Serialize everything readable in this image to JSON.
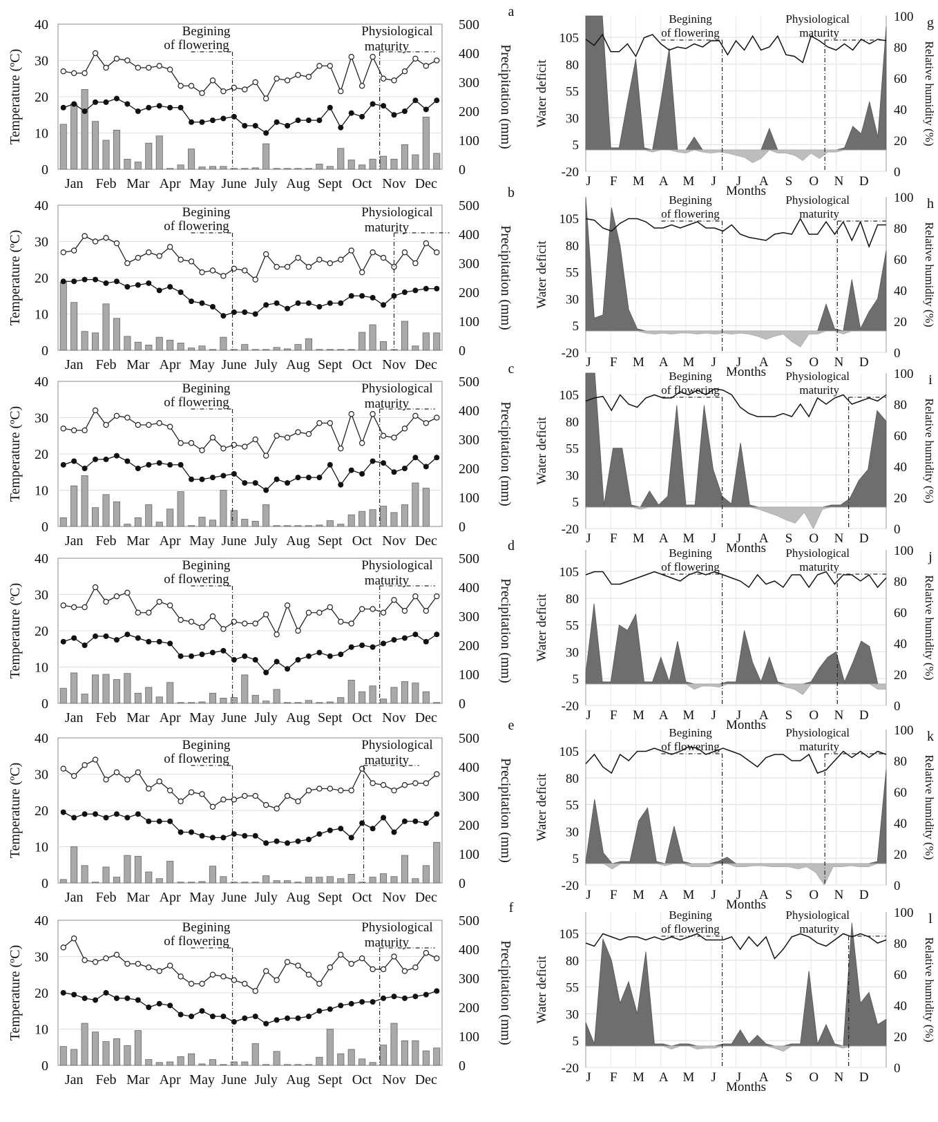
{
  "figure": {
    "left_axis_label": "Temperature (ºC)",
    "right_axis_label": "Precipitation (mm)",
    "wd_axis_label": "Water deficit",
    "rh_axis_label": "Relative humidity (%)",
    "wd_x_title": "Months",
    "flowering_label_1": "Begining",
    "flowering_label_2": "of flowering",
    "maturity_label_1": "Physiological",
    "maturity_label_2": "maturity",
    "month_labels": [
      "Jan",
      "Feb",
      "Mar",
      "Apr",
      "May",
      "June",
      "July",
      "Aug",
      "Sept",
      "Oct",
      "Nov",
      "Dec"
    ],
    "wd_month_labels": [
      "J",
      "F",
      "M",
      "A",
      "M",
      "J",
      "J",
      "A",
      "S",
      "O",
      "N",
      "D"
    ],
    "temp_ticks": [
      "0",
      "10",
      "20",
      "30",
      "40"
    ],
    "precip_ticks": [
      "0",
      "100",
      "200",
      "300",
      "400",
      "500"
    ],
    "wd_ticks": [
      "-20",
      "5",
      "30",
      "55",
      "80",
      "105"
    ],
    "rh_ticks": [
      "0",
      "20",
      "40",
      "60",
      "80",
      "100"
    ]
  },
  "chart_data": [
    {
      "panel": "a",
      "type": "line",
      "tmax": [
        27,
        26.5,
        26.5,
        32,
        28,
        30.5,
        30,
        28,
        28,
        28.5,
        27.5,
        23,
        23,
        21,
        24.5,
        21.5,
        22.5,
        22,
        24,
        19.5,
        25,
        24.5,
        26,
        25.5,
        28.5,
        28.5,
        21.5,
        31,
        23,
        31,
        25,
        24.5,
        27,
        30.5,
        28.5,
        30
      ],
      "tmin": [
        17,
        18,
        16,
        18.5,
        18.5,
        19.5,
        18,
        16,
        17,
        17.5,
        17,
        17,
        13,
        13,
        13.5,
        14,
        14.5,
        12,
        12,
        10,
        13,
        12,
        13.5,
        13.5,
        13.5,
        17,
        11.5,
        15.5,
        14.5,
        18,
        17.5,
        15,
        16,
        19,
        16.5,
        19
      ],
      "precip": [
        155,
        225,
        275,
        165,
        100,
        135,
        35,
        25,
        90,
        115,
        3,
        15,
        70,
        8,
        10,
        10,
        3,
        3,
        5,
        88,
        3,
        3,
        3,
        3,
        18,
        10,
        72,
        32,
        15,
        35,
        45,
        35,
        85,
        50,
        180,
        55
      ],
      "flowering": 5.45,
      "maturity": 10.05
    },
    {
      "panel": "b",
      "type": "line",
      "tmax": [
        27,
        27.5,
        31.5,
        30,
        31,
        29.5,
        24,
        25.5,
        27,
        26,
        28.5,
        25,
        24.5,
        21.5,
        22,
        20.5,
        22.5,
        22,
        19.5,
        26.5,
        23,
        23,
        25.5,
        23,
        25,
        24,
        25,
        27.5,
        21.5,
        27,
        25.5,
        23,
        27,
        24,
        29.5,
        27
      ],
      "tmin": [
        19,
        19,
        19.5,
        19.5,
        18.5,
        19,
        17.5,
        18,
        18.5,
        16.5,
        17.5,
        16,
        13.5,
        13,
        12,
        9.5,
        10.5,
        10.5,
        10,
        12.5,
        13,
        11.5,
        13,
        13,
        12,
        13,
        13,
        15,
        15,
        14.5,
        12.5,
        15,
        16,
        16.5,
        17,
        17
      ],
      "precip": [
        235,
        165,
        65,
        60,
        160,
        110,
        48,
        28,
        18,
        45,
        35,
        25,
        8,
        15,
        3,
        45,
        3,
        20,
        3,
        3,
        10,
        5,
        20,
        40,
        3,
        3,
        3,
        3,
        62,
        88,
        30,
        3,
        100,
        15,
        60,
        60,
        120
      ],
      "flowering": 5.45,
      "maturity": 10.5
    },
    {
      "panel": "c",
      "type": "line",
      "tmax": [
        27,
        26.5,
        26.5,
        32,
        28,
        30.5,
        30,
        28,
        28,
        28.5,
        27.5,
        23,
        23,
        21,
        24.5,
        21.5,
        22.5,
        22,
        24,
        19.5,
        25,
        24.5,
        26,
        25.5,
        28.5,
        28.5,
        21.5,
        31,
        23,
        31,
        25,
        24.5,
        27,
        30.5,
        28.5,
        30
      ],
      "tmin": [
        17,
        18,
        16,
        18.5,
        18.5,
        19.5,
        18,
        16,
        17,
        17.5,
        17,
        17,
        13,
        13,
        13.5,
        14,
        14.5,
        12,
        12,
        10,
        13,
        12,
        13.5,
        13.5,
        13.5,
        17,
        11.5,
        15.5,
        14.5,
        18,
        17.5,
        15,
        16,
        19,
        16.5,
        19
      ],
      "precip": [
        30,
        140,
        175,
        65,
        110,
        85,
        8,
        30,
        75,
        15,
        60,
        120,
        3,
        32,
        22,
        125,
        55,
        25,
        18,
        75,
        3,
        3,
        3,
        3,
        5,
        20,
        8,
        40,
        52,
        58,
        70,
        48,
        75,
        150,
        132
      ],
      "flowering": 5.45,
      "maturity": 10.05
    },
    {
      "panel": "d",
      "type": "line",
      "tmax": [
        27,
        26.5,
        26.5,
        32,
        28,
        29.5,
        30.5,
        25,
        25,
        28,
        27,
        23,
        22.5,
        21,
        24,
        20.5,
        22.5,
        22,
        22,
        24.5,
        19,
        27,
        20,
        25,
        25,
        26.5,
        22.5,
        22,
        26,
        26,
        25,
        28.5,
        25.5,
        29.5,
        25.5,
        29.5
      ],
      "tmin": [
        17,
        18,
        16,
        18.5,
        18.5,
        17.5,
        19,
        18,
        17,
        17,
        16.5,
        13,
        13,
        13.5,
        14,
        14.5,
        12,
        13,
        12,
        8.5,
        11.5,
        9.5,
        12,
        13,
        14,
        13,
        13.5,
        15.5,
        16,
        15.5,
        16.5,
        17.5,
        18,
        19,
        17,
        19
      ],
      "precip": [
        52,
        105,
        32,
        98,
        100,
        82,
        103,
        35,
        55,
        22,
        72,
        3,
        3,
        5,
        35,
        18,
        20,
        98,
        28,
        8,
        48,
        3,
        3,
        10,
        3,
        5,
        20,
        80,
        40,
        60,
        15,
        55,
        75,
        70,
        40,
        3,
        35
      ],
      "flowering": 5.45,
      "maturity": 10.05
    },
    {
      "panel": "e",
      "type": "line",
      "tmax": [
        31.5,
        29.5,
        32.5,
        34,
        28.5,
        30.5,
        28.5,
        30.5,
        26,
        28,
        25.5,
        22.5,
        25,
        24.5,
        21,
        23,
        23,
        24,
        24,
        21.5,
        20.5,
        24,
        22.5,
        25.5,
        26,
        26,
        25.5,
        25.5,
        31.5,
        27.5,
        27,
        25.5,
        27,
        27.5,
        27.5,
        30
      ],
      "tmin": [
        19.5,
        18,
        19,
        19,
        18,
        19,
        18,
        19,
        17,
        17,
        17,
        14,
        14,
        13,
        12.5,
        12.5,
        13.5,
        13,
        13,
        11,
        11.5,
        11,
        11.5,
        12,
        13.5,
        14.5,
        15,
        12.5,
        16.5,
        15,
        18,
        14,
        17,
        17,
        16.5,
        19
      ],
      "precip": [
        12,
        125,
        60,
        3,
        55,
        20,
        95,
        92,
        38,
        15,
        75,
        3,
        3,
        5,
        58,
        22,
        3,
        3,
        3,
        25,
        8,
        8,
        3,
        20,
        20,
        22,
        15,
        30,
        3,
        20,
        32,
        22,
        95,
        15,
        60,
        140
      ],
      "flowering": 5.45,
      "maturity": 9.55
    },
    {
      "panel": "f",
      "type": "line",
      "tmax": [
        32.5,
        35,
        29,
        28.5,
        29.5,
        30.5,
        28,
        28,
        27,
        26,
        27.5,
        24.5,
        22.5,
        22.5,
        25,
        24.5,
        23.5,
        22.5,
        20.5,
        26,
        23.5,
        28.5,
        27.5,
        25,
        22.5,
        27,
        30.5,
        28,
        29.5,
        26.5,
        26.5,
        30,
        26,
        27,
        31,
        29.5
      ],
      "tmin": [
        20,
        19.5,
        18.5,
        18,
        20,
        18.5,
        18.5,
        18,
        16,
        17,
        16.5,
        14,
        13.5,
        15,
        13.5,
        13.5,
        12,
        13,
        13.5,
        11.5,
        12.5,
        13,
        13,
        13.5,
        15,
        15.5,
        16.5,
        17,
        17.5,
        17.5,
        18.5,
        19,
        18.5,
        19,
        19.5,
        20.5
      ],
      "precip": [
        65,
        55,
        145,
        115,
        82,
        92,
        68,
        120,
        20,
        10,
        12,
        30,
        40,
        5,
        20,
        3,
        12,
        12,
        75,
        3,
        48,
        3,
        3,
        3,
        28,
        125,
        40,
        55,
        22,
        10,
        70,
        145,
        85,
        85,
        50,
        60,
        65
      ],
      "flowering": 5.45,
      "maturity": 10.05
    },
    {
      "panel": "g",
      "type": "area",
      "wd": [
        125,
        125,
        125,
        2,
        2,
        45,
        85,
        2,
        -2,
        45,
        95,
        -2,
        -3,
        12,
        -2,
        -3,
        -2,
        -3,
        -5,
        -7,
        -12,
        -8,
        20,
        -3,
        -3,
        -5,
        -10,
        -3,
        -8,
        -2,
        -2,
        2,
        22,
        15,
        45,
        12,
        115
      ],
      "rh": [
        85,
        81,
        88,
        77,
        77,
        82,
        74,
        86,
        88,
        82,
        78,
        80,
        79,
        82,
        80,
        84,
        84,
        75,
        84,
        78,
        87,
        78,
        80,
        87,
        75,
        74,
        70,
        87,
        84,
        80,
        78,
        82,
        78,
        85,
        82,
        85,
        84
      ],
      "flowering": 5.45,
      "maturity": 9.55
    },
    {
      "panel": "h",
      "type": "area",
      "wd": [
        125,
        12,
        15,
        115,
        80,
        20,
        2,
        -2,
        -3,
        -2,
        -3,
        -2,
        -2,
        -3,
        -2,
        -3,
        -2,
        -3,
        -2,
        -3,
        -5,
        -8,
        -5,
        -3,
        -10,
        -15,
        -3,
        -3,
        25,
        2,
        -3,
        48,
        2,
        18,
        30,
        75
      ],
      "rh": [
        86,
        85,
        80,
        78,
        83,
        86,
        86,
        84,
        80,
        80,
        82,
        80,
        82,
        84,
        80,
        80,
        78,
        82,
        76,
        74,
        73,
        72,
        76,
        77,
        76,
        86,
        76,
        76,
        84,
        76,
        84,
        72,
        84,
        68,
        82,
        82
      ],
      "flowering": 5.45,
      "maturity": 10.05
    },
    {
      "panel": "i",
      "type": "area",
      "wd": [
        125,
        125,
        2,
        55,
        55,
        2,
        -2,
        15,
        2,
        10,
        95,
        2,
        2,
        95,
        35,
        10,
        3,
        60,
        2,
        -2,
        -5,
        -8,
        -12,
        -15,
        -5,
        -20,
        -2,
        2,
        2,
        8,
        25,
        35,
        90,
        80
      ],
      "rh": [
        82,
        84,
        85,
        76,
        86,
        80,
        78,
        84,
        86,
        84,
        84,
        88,
        86,
        89,
        86,
        90,
        89,
        86,
        78,
        74,
        72,
        72,
        72,
        74,
        72,
        80,
        72,
        84,
        80,
        84,
        86,
        80,
        82,
        84,
        82,
        86
      ],
      "flowering": 5.45,
      "maturity": 10.5
    },
    {
      "panel": "j",
      "type": "area",
      "wd": [
        10,
        75,
        2,
        2,
        55,
        50,
        65,
        2,
        2,
        25,
        2,
        40,
        2,
        -5,
        -2,
        -2,
        -3,
        2,
        2,
        50,
        20,
        2,
        25,
        2,
        -3,
        -5,
        -10,
        2,
        15,
        25,
        30,
        2,
        20,
        40,
        35,
        -5,
        -5
      ],
      "rh": [
        84,
        86,
        86,
        78,
        78,
        80,
        82,
        84,
        86,
        84,
        82,
        80,
        84,
        86,
        84,
        86,
        84,
        82,
        80,
        76,
        84,
        78,
        80,
        76,
        84,
        84,
        76,
        84,
        86,
        78,
        84,
        84,
        80,
        84,
        76,
        82
      ],
      "flowering": 5.45,
      "maturity": 10.05
    },
    {
      "panel": "k",
      "type": "area",
      "wd": [
        2,
        60,
        10,
        -5,
        2,
        2,
        40,
        52,
        2,
        -2,
        35,
        2,
        -3,
        -3,
        -3,
        2,
        6,
        -3,
        -3,
        -2,
        -2,
        -3,
        -3,
        -3,
        -5,
        -3,
        -8,
        -20,
        -3,
        -3,
        -2,
        -3,
        -3,
        2,
        88
      ],
      "rh": [
        78,
        84,
        76,
        72,
        84,
        80,
        86,
        86,
        88,
        86,
        84,
        86,
        89,
        88,
        84,
        86,
        88,
        86,
        84,
        80,
        76,
        82,
        84,
        84,
        80,
        80,
        84,
        72,
        74,
        80,
        86,
        82,
        86,
        82,
        86,
        84
      ],
      "flowering": 5.45,
      "maturity": 9.55
    },
    {
      "panel": "l",
      "type": "area",
      "wd": [
        22,
        2,
        100,
        80,
        40,
        60,
        30,
        88,
        2,
        2,
        -3,
        2,
        2,
        -3,
        -2,
        -2,
        2,
        2,
        15,
        2,
        10,
        2,
        -2,
        -5,
        2,
        2,
        70,
        2,
        20,
        2,
        -2,
        115,
        40,
        50,
        20,
        25
      ],
      "rh": [
        80,
        78,
        86,
        84,
        82,
        84,
        84,
        82,
        84,
        82,
        84,
        82,
        84,
        86,
        82,
        82,
        82,
        84,
        76,
        84,
        78,
        84,
        70,
        76,
        84,
        86,
        84,
        80,
        78,
        82,
        86,
        84,
        86,
        84,
        80,
        82
      ],
      "flowering": 5.45,
      "maturity": 10.5
    }
  ]
}
